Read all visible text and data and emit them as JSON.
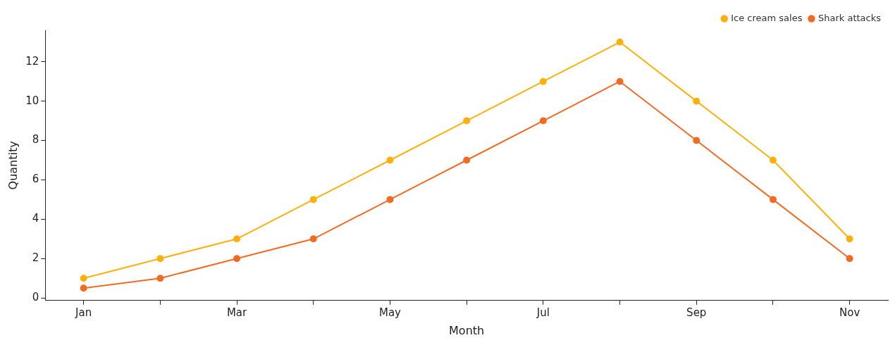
{
  "chart_data": {
    "type": "line",
    "xlabel": "Month",
    "ylabel": "Quantity",
    "categories": [
      "Jan",
      null,
      "Mar",
      null,
      "May",
      null,
      "Jul",
      null,
      "Sep",
      null,
      "Nov"
    ],
    "series": [
      {
        "name": "Ice cream sales",
        "color": "#fdb00b",
        "values": [
          1,
          2,
          3,
          5,
          7,
          9,
          11,
          13,
          10,
          7,
          3
        ]
      },
      {
        "name": "Shark attacks",
        "color": "#f26b23",
        "values": [
          0.5,
          1,
          2,
          3,
          5,
          7,
          9,
          11,
          8,
          5,
          2
        ]
      }
    ],
    "ylim": [
      -0.13,
      13.6
    ],
    "yticks": [
      0,
      2,
      4,
      6,
      8,
      10,
      12
    ],
    "grid": false,
    "legend": "top right",
    "marker": "circle",
    "line_style": "solid"
  }
}
